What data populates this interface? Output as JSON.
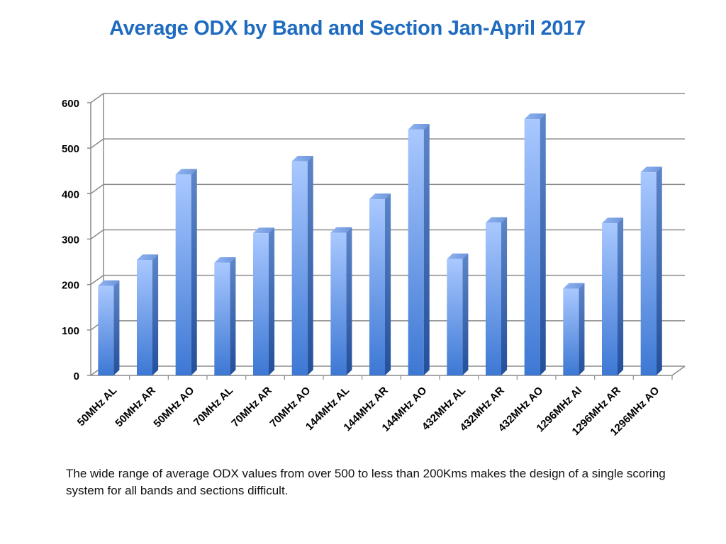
{
  "caption": "The wide range of average ODX values from over 500 to less than 200Kms makes the design of a single scoring system for all bands and sections difficult.",
  "chart_data": {
    "type": "bar",
    "title": "Average ODX by Band and Section Jan-April 2017",
    "xlabel": "",
    "ylabel": "",
    "ylim": [
      0,
      600
    ],
    "yticks": [
      0,
      100,
      200,
      300,
      400,
      500,
      600
    ],
    "grid": true,
    "legend": "none",
    "bar_color": "#5b8fe6",
    "categories": [
      "50MHz AL",
      "50MHz AR",
      "50MHz AO",
      "70MHz AL",
      "70MHz AR",
      "70MHz AO",
      "144MHz AL",
      "144MHz AR",
      "144MHz AO",
      "432MHz AL",
      "432MHz AR",
      "432MHz AO",
      "1296MHz Al",
      "1296MHz AR",
      "1296MHz AO"
    ],
    "values": [
      197,
      254,
      442,
      248,
      313,
      471,
      314,
      388,
      541,
      256,
      336,
      564,
      191,
      335,
      447
    ]
  }
}
